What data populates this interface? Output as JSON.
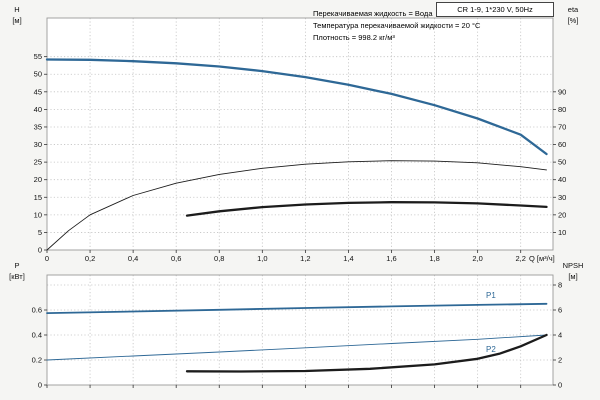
{
  "colors": {
    "blue": "#2e6896",
    "black": "#1c1c1c",
    "grid": "#c2c2c2",
    "frame": "#9a9a9a"
  },
  "chart_data": [
    {
      "type": "line",
      "title": "CR 1-9, 1*230 V, 50Hz",
      "annotations": [
        "Перекачиваемая жидкость = Вода",
        "Температура перекачиваемой жидкости = 20 °C",
        "Плотность = 998.2 кг/м³"
      ],
      "xlabel": "Q [м³/ч]",
      "ylabel_left": "H",
      "ylabel_left_unit": "[м]",
      "ylabel_right": "eta",
      "ylabel_right_unit": "[%]",
      "xlim": [
        0,
        2.35
      ],
      "ylim_left": [
        0,
        66
      ],
      "ylim_right": [
        0,
        132
      ],
      "grid_y": [
        5,
        10,
        15,
        20,
        25,
        30,
        35,
        40,
        45,
        50,
        55
      ],
      "x_ticks": [
        {
          "v": 0,
          "label": "0"
        },
        {
          "v": 0.2,
          "label": "0,2"
        },
        {
          "v": 0.4,
          "label": "0,4"
        },
        {
          "v": 0.6,
          "label": "0,6"
        },
        {
          "v": 0.8,
          "label": "0,8"
        },
        {
          "v": 1.0,
          "label": "1,0"
        },
        {
          "v": 1.2,
          "label": "1,2"
        },
        {
          "v": 1.4,
          "label": "1,4"
        },
        {
          "v": 1.6,
          "label": "1,6"
        },
        {
          "v": 1.8,
          "label": "1,8"
        },
        {
          "v": 2.0,
          "label": "2,0"
        },
        {
          "v": 2.2,
          "label": "2,2"
        }
      ],
      "y_ticks_left": [
        {
          "v": 0,
          "label": "0"
        },
        {
          "v": 5,
          "label": "5"
        },
        {
          "v": 10,
          "label": "10"
        },
        {
          "v": 15,
          "label": "15"
        },
        {
          "v": 20,
          "label": "20"
        },
        {
          "v": 25,
          "label": "25"
        },
        {
          "v": 30,
          "label": "30"
        },
        {
          "v": 35,
          "label": "35"
        },
        {
          "v": 40,
          "label": "40"
        },
        {
          "v": 45,
          "label": "45"
        },
        {
          "v": 50,
          "label": "50"
        },
        {
          "v": 55,
          "label": "55"
        }
      ],
      "y_ticks_right": [
        {
          "v": 10,
          "label": "10"
        },
        {
          "v": 20,
          "label": "20"
        },
        {
          "v": 30,
          "label": "30"
        },
        {
          "v": 40,
          "label": "40"
        },
        {
          "v": 50,
          "label": "50"
        },
        {
          "v": 60,
          "label": "60"
        },
        {
          "v": 70,
          "label": "70"
        },
        {
          "v": 80,
          "label": "80"
        },
        {
          "v": 90,
          "label": "90"
        }
      ],
      "series": [
        {
          "name": "H",
          "axis": "left",
          "color_key": "blue",
          "width": 2.3,
          "x": [
            0,
            0.2,
            0.4,
            0.6,
            0.8,
            1.0,
            1.2,
            1.4,
            1.6,
            1.8,
            2.0,
            2.2,
            2.32
          ],
          "y": [
            54.2,
            54.1,
            53.7,
            53.1,
            52.2,
            50.9,
            49.2,
            47.0,
            44.4,
            41.2,
            37.4,
            32.8,
            27.3
          ]
        },
        {
          "name": "eta-total",
          "axis": "right",
          "color_key": "black",
          "width": 0.9,
          "x": [
            0,
            0.1,
            0.2,
            0.4,
            0.6,
            0.8,
            1.0,
            1.2,
            1.4,
            1.6,
            1.8,
            2.0,
            2.2,
            2.32
          ],
          "y": [
            0,
            11,
            20,
            31,
            38,
            43,
            46.5,
            48.8,
            50.2,
            50.8,
            50.6,
            49.6,
            47.4,
            45.6
          ]
        },
        {
          "name": "eta-pump",
          "axis": "right",
          "color_key": "black",
          "width": 2.3,
          "x": [
            0.65,
            0.8,
            1.0,
            1.2,
            1.4,
            1.6,
            1.8,
            2.0,
            2.2,
            2.32
          ],
          "y": [
            19.6,
            22.0,
            24.4,
            25.9,
            26.8,
            27.2,
            27.1,
            26.5,
            25.3,
            24.5
          ]
        }
      ]
    },
    {
      "type": "line",
      "title": "",
      "xlabel": "",
      "ylabel_left": "P",
      "ylabel_left_unit": "[кВт]",
      "ylabel_right": "NPSH",
      "ylabel_right_unit": "[м]",
      "xlim": [
        0,
        2.35
      ],
      "ylim_left": [
        0,
        0.88
      ],
      "ylim_right": [
        0,
        8.8
      ],
      "grid_y": [
        0.2,
        0.4,
        0.6,
        0.8
      ],
      "x_ticks": [
        {
          "v": 0,
          "label": ""
        },
        {
          "v": 0.2,
          "label": ""
        },
        {
          "v": 0.4,
          "label": ""
        },
        {
          "v": 0.6,
          "label": ""
        },
        {
          "v": 0.8,
          "label": ""
        },
        {
          "v": 1.0,
          "label": ""
        },
        {
          "v": 1.2,
          "label": ""
        },
        {
          "v": 1.4,
          "label": ""
        },
        {
          "v": 1.6,
          "label": ""
        },
        {
          "v": 1.8,
          "label": ""
        },
        {
          "v": 2.0,
          "label": ""
        },
        {
          "v": 2.2,
          "label": ""
        }
      ],
      "y_ticks_left": [
        {
          "v": 0,
          "label": "0"
        },
        {
          "v": 0.2,
          "label": "0.2"
        },
        {
          "v": 0.4,
          "label": "0.4"
        },
        {
          "v": 0.6,
          "label": "0.6"
        }
      ],
      "y_ticks_right": [
        {
          "v": 0,
          "label": "0"
        },
        {
          "v": 2,
          "label": "2"
        },
        {
          "v": 4,
          "label": "4"
        },
        {
          "v": 6,
          "label": "6"
        },
        {
          "v": 8,
          "label": "8"
        }
      ],
      "series": [
        {
          "name": "P1",
          "axis": "left",
          "color_key": "blue",
          "width": 1.8,
          "x": [
            0,
            0.4,
            0.8,
            1.2,
            1.6,
            2.0,
            2.32
          ],
          "y": [
            0.575,
            0.588,
            0.602,
            0.616,
            0.629,
            0.641,
            0.65
          ]
        },
        {
          "name": "P2",
          "axis": "left",
          "color_key": "blue",
          "width": 0.9,
          "x": [
            0,
            0.4,
            0.8,
            1.2,
            1.6,
            2.0,
            2.32
          ],
          "y": [
            0.2,
            0.232,
            0.264,
            0.298,
            0.332,
            0.366,
            0.4
          ]
        },
        {
          "name": "NPSH",
          "axis": "right",
          "color_key": "black",
          "width": 2.3,
          "x": [
            0.65,
            0.9,
            1.2,
            1.5,
            1.8,
            2.0,
            2.1,
            2.2,
            2.32
          ],
          "y": [
            1.1,
            1.08,
            1.12,
            1.3,
            1.65,
            2.1,
            2.5,
            3.1,
            4.0
          ]
        }
      ]
    }
  ]
}
